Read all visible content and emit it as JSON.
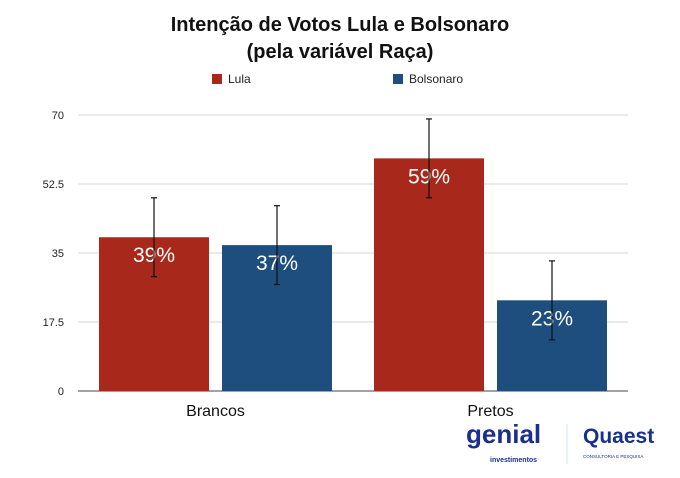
{
  "chart_data": {
    "type": "bar",
    "title": [
      "Intenção de Votos Lula e Bolsonaro",
      "(pela variável Raça)"
    ],
    "categories": [
      "Brancos",
      "Pretos"
    ],
    "series": [
      {
        "name": "Lula",
        "color": "#a8291c",
        "values": [
          39,
          59
        ],
        "labels": [
          "39%",
          "59%"
        ],
        "error": [
          10,
          10
        ]
      },
      {
        "name": "Bolsonaro",
        "color": "#1d4e7e",
        "values": [
          37,
          23
        ],
        "labels": [
          "37%",
          "23%"
        ],
        "error": [
          10,
          10
        ]
      }
    ],
    "yticks": [
      0,
      17.5,
      35,
      52.5,
      70
    ],
    "ytick_labels": [
      "0",
      "17.5",
      "35",
      "52.5",
      "70"
    ],
    "ylim": [
      0,
      70
    ],
    "grid": true,
    "legend": "top-center"
  },
  "logos": {
    "genial": "genial",
    "genial_sub": "investimentos",
    "quaest": "Quaest",
    "quaest_sub": "CONSULTORIA E PESQUISA"
  }
}
